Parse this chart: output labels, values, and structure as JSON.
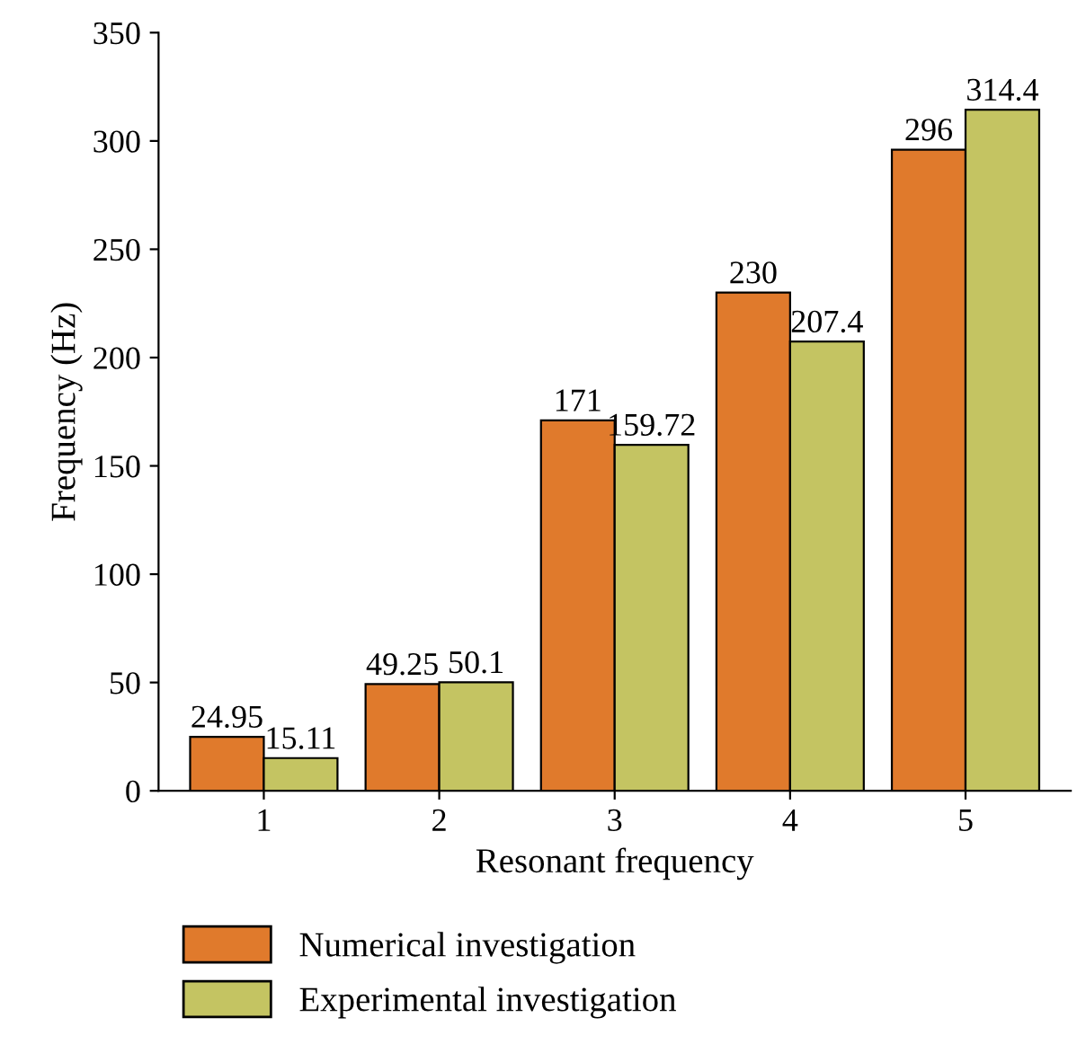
{
  "chart_data": {
    "type": "bar",
    "xlabel": "Resonant frequency",
    "ylabel": "Frequency (Hz)",
    "categories": [
      "1",
      "2",
      "3",
      "4",
      "5"
    ],
    "series": [
      {
        "name": "Numerical investigation",
        "color": "#e07a2c",
        "values": [
          24.95,
          49.25,
          171,
          230,
          296
        ]
      },
      {
        "name": "Experimental investigation",
        "color": "#c4c462",
        "values": [
          15.11,
          50.1,
          159.72,
          207.4,
          314.4
        ]
      }
    ],
    "ylim": [
      0,
      350
    ],
    "yticks": [
      0,
      50,
      100,
      150,
      200,
      250,
      300,
      350
    ],
    "data_labels": true,
    "legend": "bottom",
    "grid": false
  }
}
